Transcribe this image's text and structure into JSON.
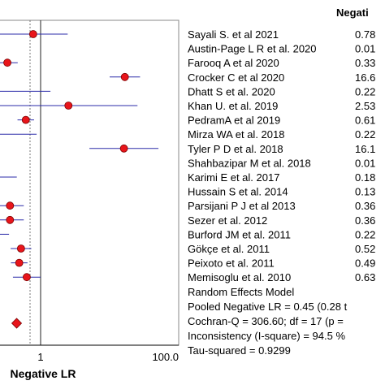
{
  "chart_data": {
    "type": "scatter",
    "header": "Negati",
    "studies": [
      {
        "name": "Sayali S. et al 2021",
        "value": 0.78,
        "value_text": "0.78"
      },
      {
        "name": "Austin-Page L R et al. 2020",
        "value": 0.01,
        "value_text": "0.01"
      },
      {
        "name": "Farooq A et al 2020",
        "value": 0.33,
        "value_text": "0.33"
      },
      {
        "name": "Crocker C et al 2020",
        "value": 16.6,
        "value_text": "16.6"
      },
      {
        "name": "Dhatt S et al. 2020",
        "value": 0.22,
        "value_text": "0.22"
      },
      {
        "name": "Khan U. et al. 2019",
        "value": 2.53,
        "value_text": "2.53"
      },
      {
        "name": "PedramA et al 2019",
        "value": 0.61,
        "value_text": "0.61"
      },
      {
        "name": "Mirza WA et al. 2018",
        "value": 0.22,
        "value_text": "0.22"
      },
      {
        "name": "Tyler P D et al. 2018",
        "value": 16.1,
        "value_text": "16.1"
      },
      {
        "name": "Shahbazipar M et al. 2018",
        "value": 0.01,
        "value_text": "0.01"
      },
      {
        "name": "Karimi  E et al. 2017",
        "value": 0.18,
        "value_text": "0.18"
      },
      {
        "name": "Hussain S et al. 2014",
        "value": 0.13,
        "value_text": "0.13"
      },
      {
        "name": "Parsijani P J et al 2013",
        "value": 0.36,
        "value_text": "0.36"
      },
      {
        "name": "Sezer et al. 2012",
        "value": 0.36,
        "value_text": "0.36"
      },
      {
        "name": "Burford JM et al. 2011",
        "value": 0.22,
        "value_text": "0.22"
      },
      {
        "name": "Gökçe et al. 2011",
        "value": 0.52,
        "value_text": "0.52"
      },
      {
        "name": "Peixoto et al. 2011",
        "value": 0.49,
        "value_text": "0.49"
      },
      {
        "name": "Memisoglu et al. 2010",
        "value": 0.63,
        "value_text": "0.63"
      }
    ],
    "pooled_value": 0.45,
    "summary_lines": [
      "Random Effects Model",
      "Pooled Negative LR = 0.45 (0.28 t",
      "Cochran-Q = 306.60; df =  17 (p =",
      "Inconsistency (I-square) = 94.5 %",
      "Tau-squared = 0.9299"
    ],
    "xlabel": "Negative LR",
    "x_tick_labels": [
      "1",
      "100.0"
    ],
    "x_scale": "log",
    "colors": {
      "marker": "#e8151b",
      "marker_edge": "#7a0000",
      "ci_line": "#2b2ba8",
      "frame": "#888888",
      "ref_line": "#222222"
    }
  }
}
